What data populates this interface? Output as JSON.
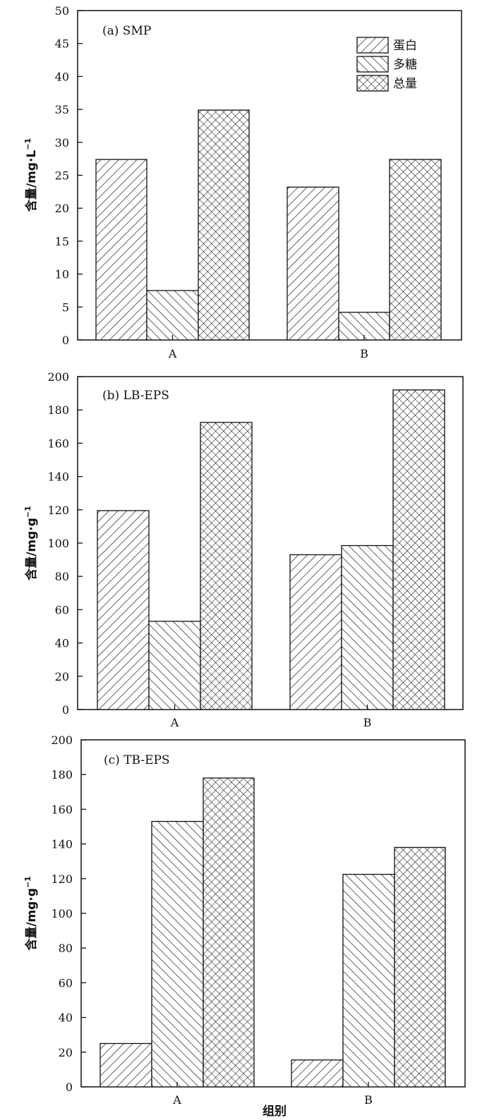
{
  "chart_data": [
    {
      "type": "bar",
      "panel_label": "(a) SMP",
      "ylabel": "含量/mg·L",
      "ylabel_sup": "−1",
      "xlabel": "",
      "categories": [
        "A",
        "B"
      ],
      "ylim": [
        0,
        50
      ],
      "yticks": [
        0,
        5,
        10,
        15,
        20,
        25,
        30,
        35,
        40,
        45,
        50
      ],
      "series": [
        {
          "name": "蛋白",
          "pattern": "diag-right",
          "values": [
            27.4,
            23.2
          ]
        },
        {
          "name": "多糖",
          "pattern": "diag-left",
          "values": [
            7.5,
            4.2
          ]
        },
        {
          "name": "总量",
          "pattern": "crosshatch",
          "values": [
            34.9,
            27.4
          ]
        }
      ],
      "legend": {
        "position": "top-right",
        "entries": [
          "蛋白",
          "多糖",
          "总量"
        ]
      }
    },
    {
      "type": "bar",
      "panel_label": "(b) LB-EPS",
      "ylabel": "含量/mg·g",
      "ylabel_sup": "−1",
      "xlabel": "",
      "categories": [
        "A",
        "B"
      ],
      "ylim": [
        0,
        200
      ],
      "yticks": [
        0,
        20,
        40,
        60,
        80,
        100,
        120,
        140,
        160,
        180,
        200
      ],
      "series": [
        {
          "name": "蛋白",
          "pattern": "diag-right",
          "values": [
            119.5,
            93
          ]
        },
        {
          "name": "多糖",
          "pattern": "diag-left",
          "values": [
            53,
            98.5
          ]
        },
        {
          "name": "总量",
          "pattern": "crosshatch",
          "values": [
            172.5,
            192
          ]
        }
      ]
    },
    {
      "type": "bar",
      "panel_label": "(c) TB-EPS",
      "ylabel": "含量/mg·g",
      "ylabel_sup": "−1",
      "xlabel": "组别",
      "categories": [
        "A",
        "B"
      ],
      "ylim": [
        0,
        200
      ],
      "yticks": [
        0,
        20,
        40,
        60,
        80,
        100,
        120,
        140,
        160,
        180,
        200
      ],
      "series": [
        {
          "name": "蛋白",
          "pattern": "diag-right",
          "values": [
            25,
            15.5
          ]
        },
        {
          "name": "多糖",
          "pattern": "diag-left",
          "values": [
            153,
            122.5
          ]
        },
        {
          "name": "总量",
          "pattern": "crosshatch",
          "values": [
            178,
            138
          ]
        }
      ]
    }
  ]
}
